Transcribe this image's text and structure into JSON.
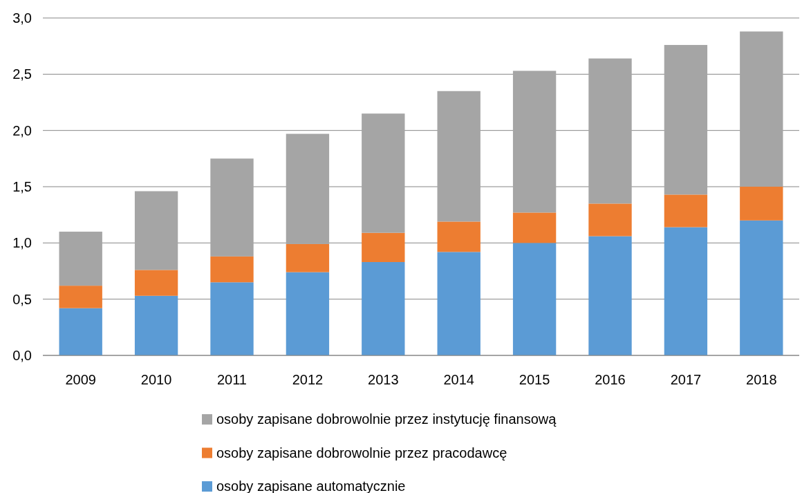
{
  "chart_data": {
    "type": "bar",
    "stacked": true,
    "categories": [
      "2009",
      "2010",
      "2011",
      "2012",
      "2013",
      "2014",
      "2015",
      "2016",
      "2017",
      "2018"
    ],
    "series": [
      {
        "name": "osoby zapisane automatycznie",
        "color": "#5b9bd5",
        "values": [
          0.42,
          0.53,
          0.65,
          0.74,
          0.83,
          0.92,
          1.0,
          1.06,
          1.14,
          1.2
        ]
      },
      {
        "name": "osoby zapisane dobrowolnie przez pracodawcę",
        "color": "#ed7d31",
        "values": [
          0.2,
          0.23,
          0.23,
          0.25,
          0.26,
          0.27,
          0.27,
          0.29,
          0.29,
          0.3
        ]
      },
      {
        "name": "osoby zapisane dobrowolnie przez instytucję finansową",
        "color": "#a5a5a5",
        "values": [
          0.48,
          0.7,
          0.87,
          0.98,
          1.06,
          1.16,
          1.26,
          1.29,
          1.33,
          1.38
        ]
      }
    ],
    "ylim": [
      0,
      3
    ],
    "yticks": [
      {
        "value": 0,
        "label": "0,0"
      },
      {
        "value": 0.5,
        "label": "0,5"
      },
      {
        "value": 1,
        "label": "1,0"
      },
      {
        "value": 1.5,
        "label": "1,5"
      },
      {
        "value": 2,
        "label": "2,0"
      },
      {
        "value": 2.5,
        "label": "2,5"
      },
      {
        "value": 3,
        "label": "3,0"
      }
    ],
    "grid": "y",
    "legend": "bottom"
  }
}
